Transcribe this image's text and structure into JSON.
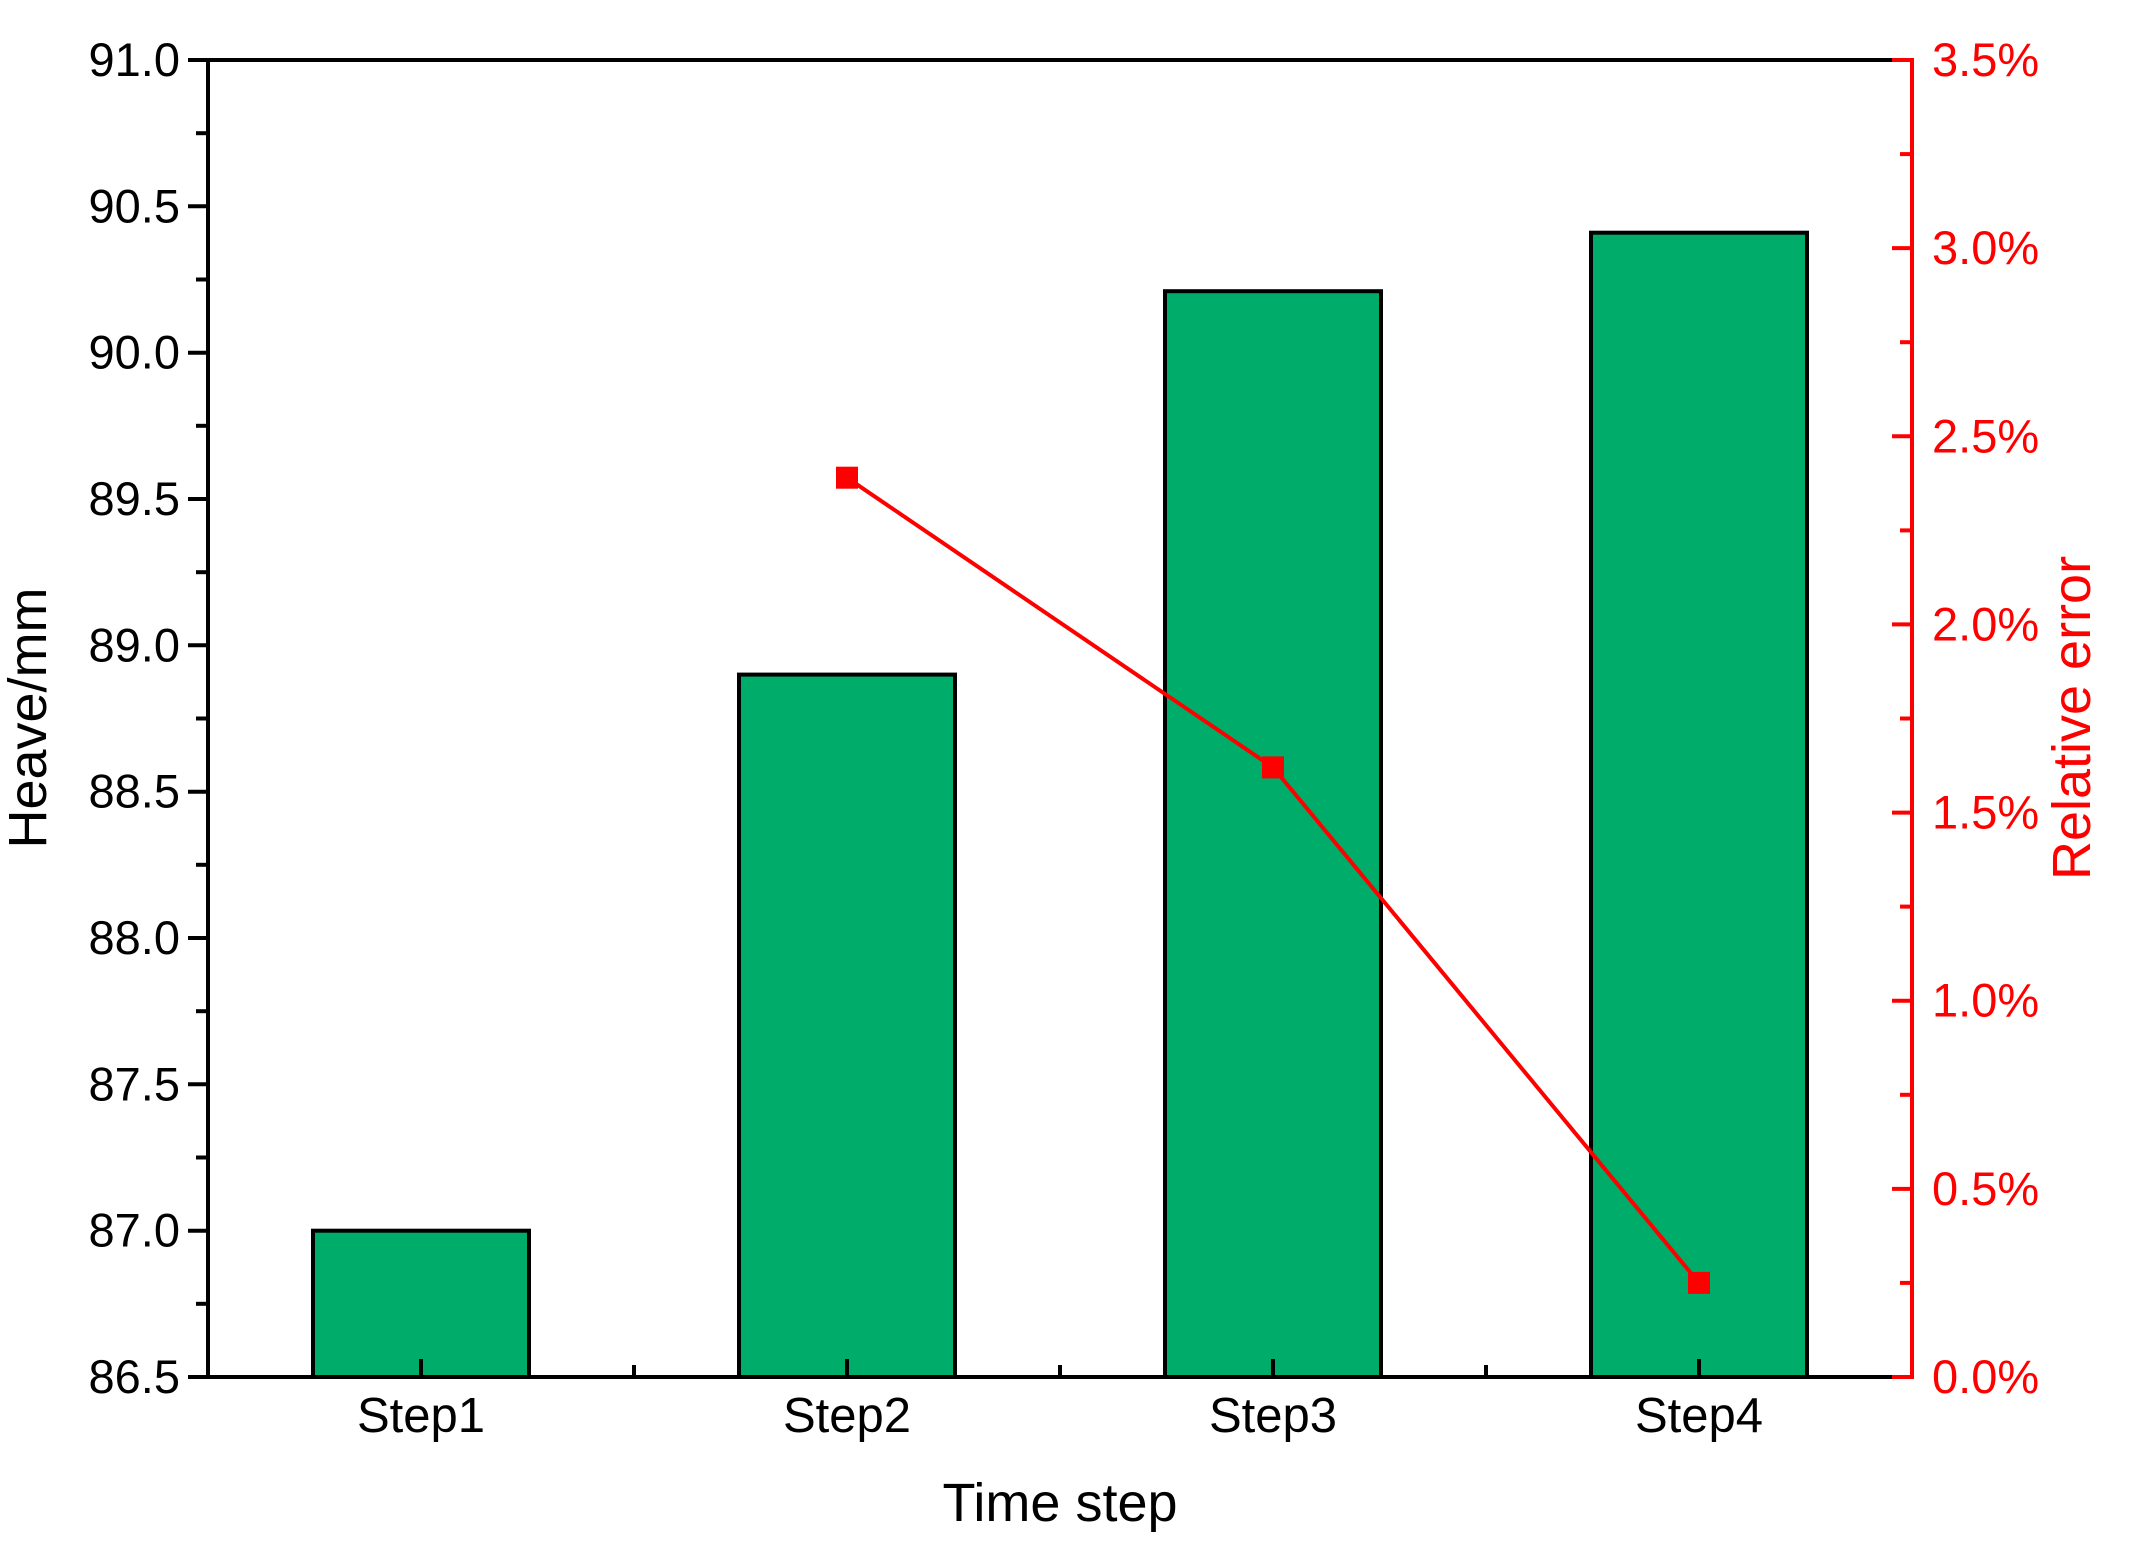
{
  "chart_data": {
    "type": "bar",
    "subtype": "bar+line dual-axis",
    "categories": [
      "Step1",
      "Step2",
      "Step3",
      "Step4"
    ],
    "series": [
      {
        "name": "Heave",
        "type": "bar",
        "axis": "left",
        "values": [
          87.0,
          88.9,
          90.21,
          90.41
        ],
        "fill_color": "#00AC69",
        "border_color": "#000000"
      },
      {
        "name": "Relative error",
        "type": "line",
        "axis": "right",
        "category_indices": [
          1,
          2,
          3
        ],
        "values": [
          2.39,
          1.62,
          0.25
        ],
        "color": "#FF0000",
        "marker": "square"
      }
    ],
    "x_axis": {
      "label": "Time step",
      "tick_labels": [
        "Step1",
        "Step2",
        "Step3",
        "Step4"
      ],
      "color": "#000000"
    },
    "left_axis": {
      "label": "Heave/mm",
      "min": 86.5,
      "max": 91.0,
      "major_step": 0.5,
      "minor_step": 0.25,
      "decimals": 1,
      "suffix": "",
      "color": "#000000"
    },
    "right_axis": {
      "label": "Relative error",
      "min": 0.0,
      "max": 3.5,
      "major_step": 0.5,
      "minor_step": 0.25,
      "decimals": 1,
      "suffix": "%",
      "color": "#FF0000"
    },
    "grid": false,
    "legend": "none",
    "background_color": "#FFFFFF"
  }
}
